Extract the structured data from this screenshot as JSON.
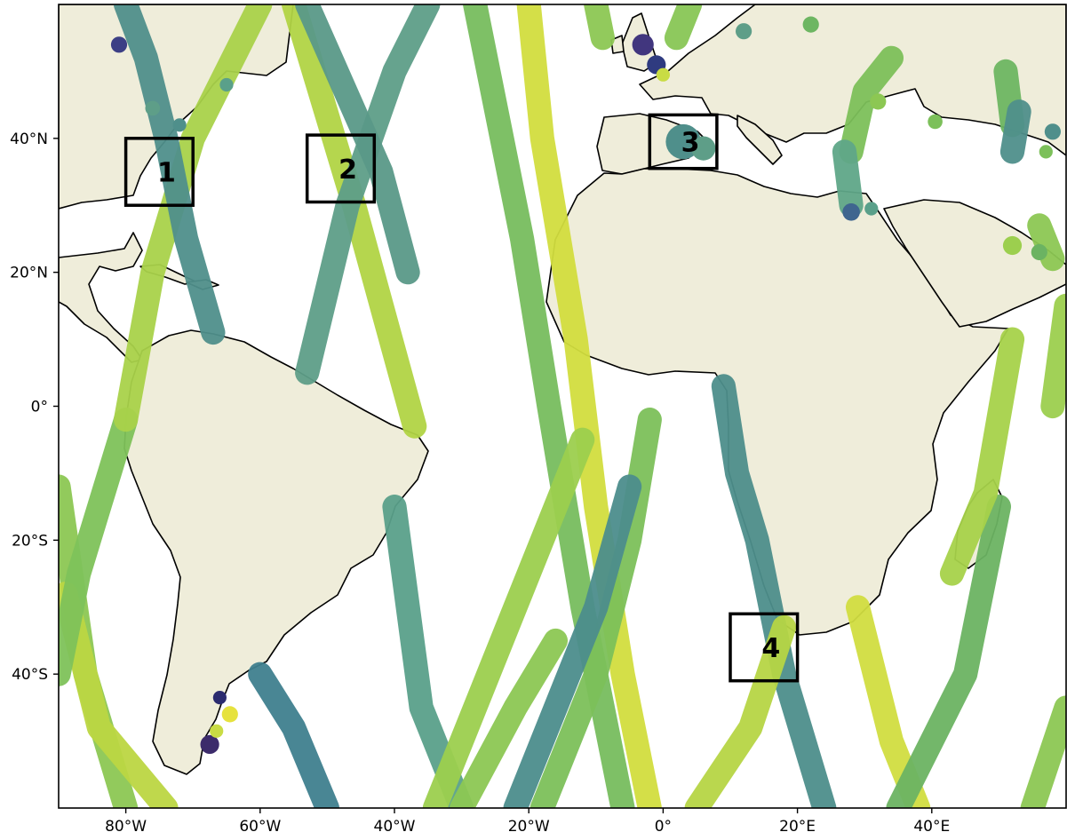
{
  "map": {
    "projection": "plate-carree",
    "lon_range": [
      -90,
      60
    ],
    "lat_range": [
      -60,
      60
    ],
    "land_color": "#efedda",
    "ocean_color": "#ffffff",
    "coastline_color": "#000000",
    "box_color": "#000000"
  },
  "axes": {
    "x_ticks": [
      {
        "value": -80,
        "label": "80°W"
      },
      {
        "value": -60,
        "label": "60°W"
      },
      {
        "value": -40,
        "label": "40°W"
      },
      {
        "value": -20,
        "label": "20°W"
      },
      {
        "value": 0,
        "label": "0°"
      },
      {
        "value": 20,
        "label": "20°E"
      },
      {
        "value": 40,
        "label": "40°E"
      }
    ],
    "y_ticks": [
      {
        "value": 40,
        "label": "40°N"
      },
      {
        "value": 20,
        "label": "20°N"
      },
      {
        "value": 0,
        "label": "0°"
      },
      {
        "value": -20,
        "label": "20°S"
      },
      {
        "value": -40,
        "label": "40°S"
      }
    ]
  },
  "boxes": [
    {
      "label": "1",
      "lon": [
        -80,
        -70
      ],
      "lat": [
        30,
        40
      ]
    },
    {
      "label": "2",
      "lon": [
        -53,
        -43
      ],
      "lat": [
        30.5,
        40.5
      ]
    },
    {
      "label": "3",
      "lon": [
        -2,
        8
      ],
      "lat": [
        35.5,
        43.5
      ]
    },
    {
      "label": "4",
      "lon": [
        10,
        20
      ],
      "lat": [
        -41,
        -31
      ]
    }
  ],
  "tracks": [
    {
      "pts": [
        [
          -90,
          -12
        ],
        [
          -86,
          -40
        ],
        [
          -80,
          -60
        ]
      ],
      "color": "#8cc753"
    },
    {
      "pts": [
        [
          -89,
          -28
        ],
        [
          -84,
          -48
        ],
        [
          -74,
          -60
        ]
      ],
      "color": "#bcd642"
    },
    {
      "pts": [
        [
          -80,
          -2
        ],
        [
          -87,
          -25
        ],
        [
          -90,
          -40
        ]
      ],
      "color": "#7ec25a"
    },
    {
      "pts": [
        [
          -80,
          -2
        ],
        [
          -76,
          20
        ],
        [
          -70,
          40
        ],
        [
          -60,
          60
        ]
      ],
      "color": "#a9d24a"
    },
    {
      "pts": [
        [
          -67,
          11
        ],
        [
          -71,
          25
        ],
        [
          -74,
          40
        ],
        [
          -77,
          52
        ],
        [
          -80,
          60
        ]
      ],
      "color": "#4f8f8b"
    },
    {
      "pts": [
        [
          -37,
          -3
        ],
        [
          -46,
          30
        ],
        [
          -55,
          60
        ]
      ],
      "color": "#b1d444"
    },
    {
      "pts": [
        [
          -53,
          5
        ],
        [
          -47,
          30
        ],
        [
          -40,
          50
        ],
        [
          -35,
          60
        ]
      ],
      "color": "#5e9e88"
    },
    {
      "pts": [
        [
          -53,
          60
        ],
        [
          -42,
          35
        ],
        [
          -38,
          20
        ]
      ],
      "color": "#5a9988"
    },
    {
      "pts": [
        [
          -20,
          60
        ],
        [
          -18,
          40
        ],
        [
          -13,
          10
        ],
        [
          -10,
          -15
        ],
        [
          -6,
          -40
        ],
        [
          -2,
          -60
        ]
      ],
      "color": "#d2dd3e"
    },
    {
      "pts": [
        [
          -28,
          60
        ],
        [
          -21,
          25
        ],
        [
          -17,
          0
        ],
        [
          -12,
          -30
        ],
        [
          -6,
          -60
        ]
      ],
      "color": "#77bd5e"
    },
    {
      "pts": [
        [
          -40,
          -15
        ],
        [
          -38,
          -30
        ],
        [
          -36,
          -45
        ],
        [
          -30,
          -60
        ]
      ],
      "color": "#5aa08a"
    },
    {
      "pts": [
        [
          -60,
          -40
        ],
        [
          -55,
          -48
        ],
        [
          -50,
          -60
        ]
      ],
      "color": "#3f7f8e"
    },
    {
      "pts": [
        [
          -34,
          -60
        ],
        [
          -26,
          -40
        ],
        [
          -18,
          -20
        ],
        [
          -12,
          -5
        ]
      ],
      "color": "#9ccf4e"
    },
    {
      "pts": [
        [
          -30,
          -60
        ],
        [
          -22,
          -45
        ],
        [
          -16,
          -35
        ]
      ],
      "color": "#8cc753"
    },
    {
      "pts": [
        [
          -10,
          60
        ],
        [
          -9,
          55
        ]
      ],
      "color": "#8cc753"
    },
    {
      "pts": [
        [
          -2,
          -2
        ],
        [
          -5,
          -20
        ],
        [
          -10,
          -40
        ],
        [
          -18,
          -60
        ]
      ],
      "color": "#7cc05a"
    },
    {
      "pts": [
        [
          -22,
          -60
        ],
        [
          -16,
          -45
        ],
        [
          -10,
          -30
        ],
        [
          -5,
          -12
        ]
      ],
      "color": "#4c8d8c"
    },
    {
      "pts": [
        [
          9,
          3
        ],
        [
          11,
          -10
        ],
        [
          14,
          -20
        ],
        [
          16,
          -30
        ],
        [
          18,
          -40
        ],
        [
          24,
          -60
        ]
      ],
      "color": "#4d8e8b"
    },
    {
      "pts": [
        [
          18,
          -33
        ],
        [
          13,
          -48
        ],
        [
          5,
          -60
        ]
      ],
      "color": "#b6d545"
    },
    {
      "pts": [
        [
          29,
          -30
        ],
        [
          34,
          -50
        ],
        [
          38,
          -60
        ]
      ],
      "color": "#d1dd40"
    },
    {
      "pts": [
        [
          50,
          -15
        ],
        [
          45,
          -40
        ],
        [
          35,
          -60
        ]
      ],
      "color": "#6bb362"
    },
    {
      "pts": [
        [
          52,
          10
        ],
        [
          48,
          -13
        ],
        [
          43,
          -25
        ]
      ],
      "color": "#a6d24a"
    },
    {
      "pts": [
        [
          60,
          15
        ],
        [
          58,
          0
        ]
      ],
      "color": "#9ccf4e"
    },
    {
      "pts": [
        [
          58,
          22
        ],
        [
          56,
          27
        ]
      ],
      "color": "#8cc753"
    },
    {
      "pts": [
        [
          60,
          -45
        ],
        [
          55,
          -60
        ]
      ],
      "color": "#8cc753"
    },
    {
      "pts": [
        [
          4,
          60
        ],
        [
          2,
          55
        ]
      ],
      "color": "#88c655"
    },
    {
      "pts": [
        [
          28,
          38
        ],
        [
          30,
          47
        ],
        [
          34,
          52
        ]
      ],
      "color": "#7cc05a"
    },
    {
      "pts": [
        [
          28,
          30
        ],
        [
          27,
          38
        ]
      ],
      "color": "#5fa688"
    },
    {
      "pts": [
        [
          51,
          50
        ],
        [
          52,
          42
        ]
      ],
      "color": "#6db662"
    },
    {
      "pts": [
        [
          53,
          44
        ],
        [
          52,
          38
        ]
      ],
      "color": "#4f8f8b"
    }
  ],
  "blobs": [
    {
      "lon": -81,
      "lat": 54,
      "r": 1.2,
      "color": "#3c3f85"
    },
    {
      "lon": -72,
      "lat": 42,
      "r": 1.0,
      "color": "#4f8f8b"
    },
    {
      "lon": -76,
      "lat": 44.5,
      "r": 1.1,
      "color": "#5e9e88"
    },
    {
      "lon": -65,
      "lat": 48,
      "r": 1.0,
      "color": "#5aa08a"
    },
    {
      "lon": -3,
      "lat": 54,
      "r": 1.6,
      "color": "#41367e"
    },
    {
      "lon": -1,
      "lat": 51,
      "r": 1.4,
      "color": "#2f3b80"
    },
    {
      "lon": 0,
      "lat": 49.5,
      "r": 1.0,
      "color": "#c9dc44"
    },
    {
      "lon": 3,
      "lat": 39.5,
      "r": 2.6,
      "color": "#4f8f8b"
    },
    {
      "lon": 6,
      "lat": 38.5,
      "r": 1.8,
      "color": "#5e9e88"
    },
    {
      "lon": 12,
      "lat": 56,
      "r": 1.2,
      "color": "#5e9e88"
    },
    {
      "lon": 22,
      "lat": 57,
      "r": 1.2,
      "color": "#6db662"
    },
    {
      "lon": 32,
      "lat": 45.5,
      "r": 1.2,
      "color": "#8cc753"
    },
    {
      "lon": 28,
      "lat": 29,
      "r": 1.3,
      "color": "#3f658f"
    },
    {
      "lon": 31,
      "lat": 29.5,
      "r": 1.0,
      "color": "#5aa08a"
    },
    {
      "lon": 52,
      "lat": 24,
      "r": 1.4,
      "color": "#9ccf4e"
    },
    {
      "lon": 56,
      "lat": 23,
      "r": 1.2,
      "color": "#6bb362"
    },
    {
      "lon": 58,
      "lat": 41,
      "r": 1.2,
      "color": "#4f8f8b"
    },
    {
      "lon": 57,
      "lat": 38,
      "r": 1.0,
      "color": "#7cc05a"
    },
    {
      "lon": 40.5,
      "lat": 42.5,
      "r": 1.1,
      "color": "#7cc05a"
    },
    {
      "lon": -66,
      "lat": -43.5,
      "r": 1.0,
      "color": "#2b2b6f"
    },
    {
      "lon": -64.5,
      "lat": -46,
      "r": 1.2,
      "color": "#e6e23e"
    },
    {
      "lon": -67.5,
      "lat": -50.5,
      "r": 1.4,
      "color": "#3c2b6b"
    },
    {
      "lon": -66.5,
      "lat": -48.5,
      "r": 1.0,
      "color": "#c9dc44"
    }
  ]
}
